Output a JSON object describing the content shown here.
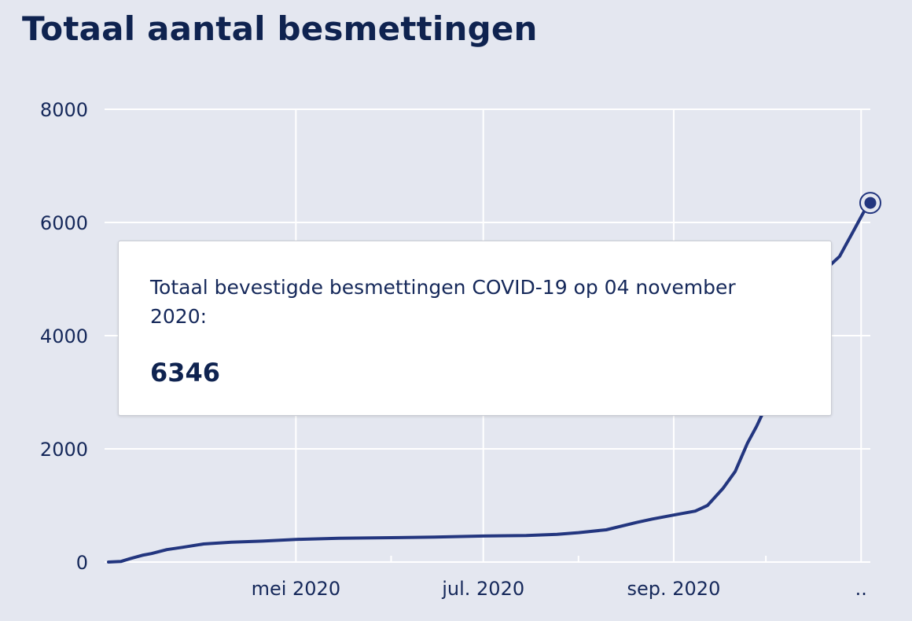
{
  "title": "Totaal aantal besmettingen",
  "tooltip": {
    "label": "Totaal bevestigde besmettingen COVID-19 op 04 november 2020:",
    "value": "6346"
  },
  "colors": {
    "background": "#e4e7f0",
    "line": "#23367f",
    "grid": "#ffffff",
    "text": "#15285a"
  },
  "chart_data": {
    "type": "line",
    "title": "Totaal aantal besmettingen",
    "xlabel": "",
    "ylabel": "",
    "ylim": [
      0,
      8000
    ],
    "xlim": [
      "2020-03-01",
      "2020-11-04"
    ],
    "y_ticks": [
      0,
      2000,
      4000,
      6000,
      8000
    ],
    "x_tick_labels": [
      {
        "date": "2020-05-01",
        "label": "mei 2020"
      },
      {
        "date": "2020-07-01",
        "label": "jul. 2020"
      },
      {
        "date": "2020-09-01",
        "label": "sep. 2020"
      },
      {
        "date": "2020-11-01",
        "label": ".."
      }
    ],
    "x_minor_ticks": [
      "2020-06-01",
      "2020-08-01",
      "2020-10-01"
    ],
    "grid": true,
    "legend": "none",
    "highlight": {
      "x": "2020-11-04",
      "y": 6346
    },
    "series": [
      {
        "x": [
          "2020-03-01",
          "2020-03-05",
          "2020-03-08",
          "2020-03-12",
          "2020-03-15",
          "2020-03-20",
          "2020-03-25",
          "2020-04-01",
          "2020-04-10",
          "2020-04-20",
          "2020-05-01",
          "2020-05-15",
          "2020-06-01",
          "2020-06-15",
          "2020-07-01",
          "2020-07-15",
          "2020-07-25",
          "2020-08-01",
          "2020-08-10",
          "2020-08-20",
          "2020-08-25",
          "2020-09-01",
          "2020-09-08",
          "2020-09-12",
          "2020-09-17",
          "2020-09-21",
          "2020-09-25",
          "2020-09-28",
          "2020-10-01",
          "2020-10-04",
          "2020-10-06",
          "2020-10-08",
          "2020-10-10",
          "2020-10-12",
          "2020-10-14",
          "2020-10-16",
          "2020-10-19",
          "2020-10-22",
          "2020-10-25",
          "2020-10-27",
          "2020-10-29",
          "2020-10-31",
          "2020-11-02",
          "2020-11-04"
        ],
        "y": [
          0,
          10,
          60,
          120,
          150,
          220,
          260,
          320,
          350,
          370,
          400,
          420,
          430,
          440,
          460,
          470,
          490,
          520,
          570,
          700,
          760,
          830,
          900,
          1000,
          1300,
          1600,
          2100,
          2400,
          2750,
          3000,
          3300,
          3800,
          4400,
          4800,
          4900,
          5000,
          5120,
          5250,
          5400,
          5600,
          5800,
          6000,
          6200,
          6346
        ]
      }
    ]
  }
}
